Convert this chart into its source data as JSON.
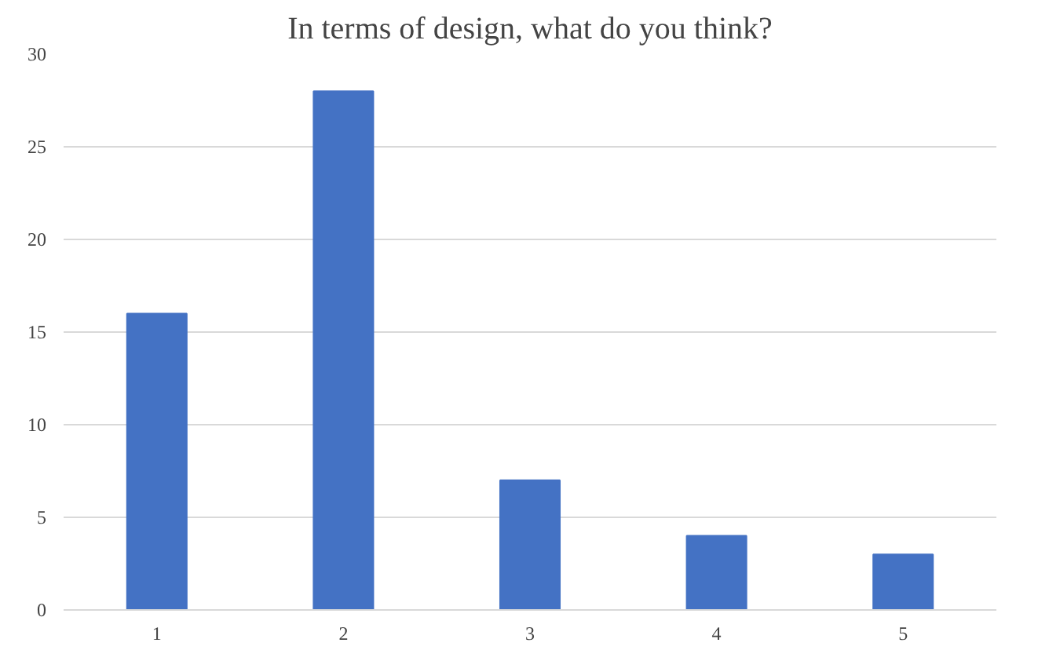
{
  "chart_data": {
    "type": "bar",
    "title": "In terms of design, what do you think?",
    "categories": [
      "1",
      "2",
      "3",
      "4",
      "5"
    ],
    "values": [
      16,
      28,
      7,
      4,
      3
    ],
    "color": "#4472c4",
    "ylim": [
      0,
      30
    ],
    "yticks": [
      0,
      5,
      10,
      15,
      20,
      25,
      30
    ],
    "grid": "y"
  }
}
